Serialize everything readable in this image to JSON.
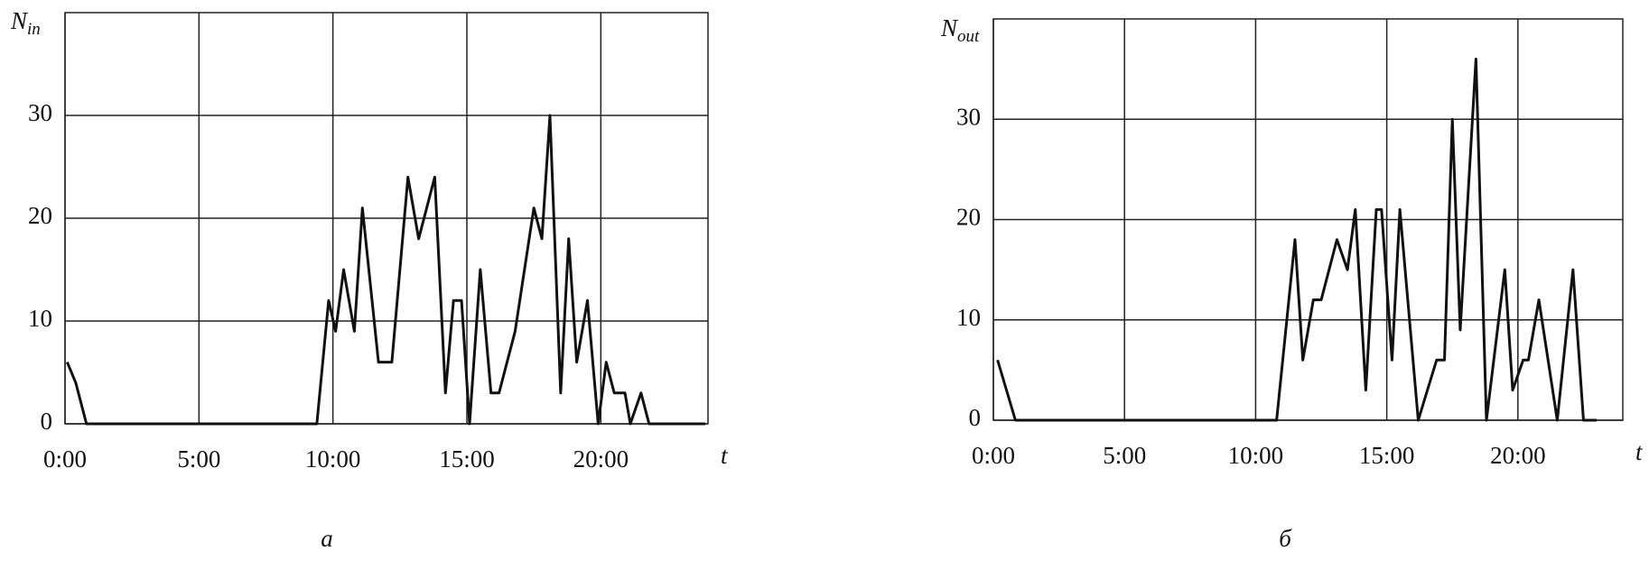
{
  "chart_data": [
    {
      "type": "line",
      "ylabel_main": "N",
      "ylabel_sub": "in",
      "xlabel": "t",
      "caption": "а",
      "color": "#111111",
      "grid": true,
      "xlim": [
        0,
        24
      ],
      "ylim": [
        0,
        40
      ],
      "xticks": [
        {
          "value": 0,
          "label": "0:00"
        },
        {
          "value": 5,
          "label": "5:00"
        },
        {
          "value": 10,
          "label": "10:00"
        },
        {
          "value": 15,
          "label": "15:00"
        },
        {
          "value": 20,
          "label": "20:00"
        }
      ],
      "yticks": [
        0,
        10,
        20,
        30
      ],
      "x": [
        0.08,
        0.4,
        0.8,
        9.4,
        9.84,
        10.1,
        10.4,
        10.8,
        11.1,
        11.7,
        12.2,
        12.8,
        13.2,
        13.8,
        14.2,
        14.5,
        14.8,
        15.1,
        15.5,
        15.9,
        16.2,
        16.8,
        17.5,
        17.8,
        18.1,
        18.5,
        18.8,
        19.1,
        19.5,
        19.9,
        20.2,
        20.5,
        20.9,
        21.1,
        21.5,
        21.8,
        23.9
      ],
      "values": [
        6,
        4,
        0,
        0,
        12,
        9,
        15,
        9,
        21,
        6,
        6,
        24,
        18,
        24,
        3,
        12,
        12,
        0,
        15,
        3,
        3,
        9,
        21,
        18,
        30,
        3,
        18,
        6,
        12,
        0,
        6,
        3,
        3,
        0,
        3,
        0,
        0
      ]
    },
    {
      "type": "line",
      "ylabel_main": "N",
      "ylabel_sub": "out",
      "xlabel": "t",
      "caption": "б",
      "color": "#111111",
      "grid": true,
      "xlim": [
        0,
        24
      ],
      "ylim": [
        0,
        40
      ],
      "xticks": [
        {
          "value": 0,
          "label": "0:00"
        },
        {
          "value": 5,
          "label": "5:00"
        },
        {
          "value": 10,
          "label": "10:00"
        },
        {
          "value": 15,
          "label": "15:00"
        },
        {
          "value": 20,
          "label": "20:00"
        }
      ],
      "yticks": [
        0,
        10,
        20,
        30
      ],
      "x": [
        0.16,
        0.5,
        0.84,
        10.8,
        11.5,
        11.8,
        12.2,
        12.5,
        13.1,
        13.5,
        13.8,
        14.2,
        14.6,
        14.8,
        15.2,
        15.5,
        16.2,
        16.9,
        17.2,
        17.5,
        17.8,
        18.4,
        18.8,
        19.5,
        19.8,
        20.2,
        20.4,
        20.8,
        21.5,
        22.1,
        22.5,
        23.0
      ],
      "values": [
        6,
        3,
        0,
        0,
        18,
        6,
        12,
        12,
        18,
        15,
        21,
        3,
        21,
        21,
        6,
        21,
        0,
        6,
        6,
        30,
        9,
        36,
        0,
        15,
        3,
        6,
        6,
        12,
        0,
        15,
        0,
        0
      ]
    }
  ]
}
